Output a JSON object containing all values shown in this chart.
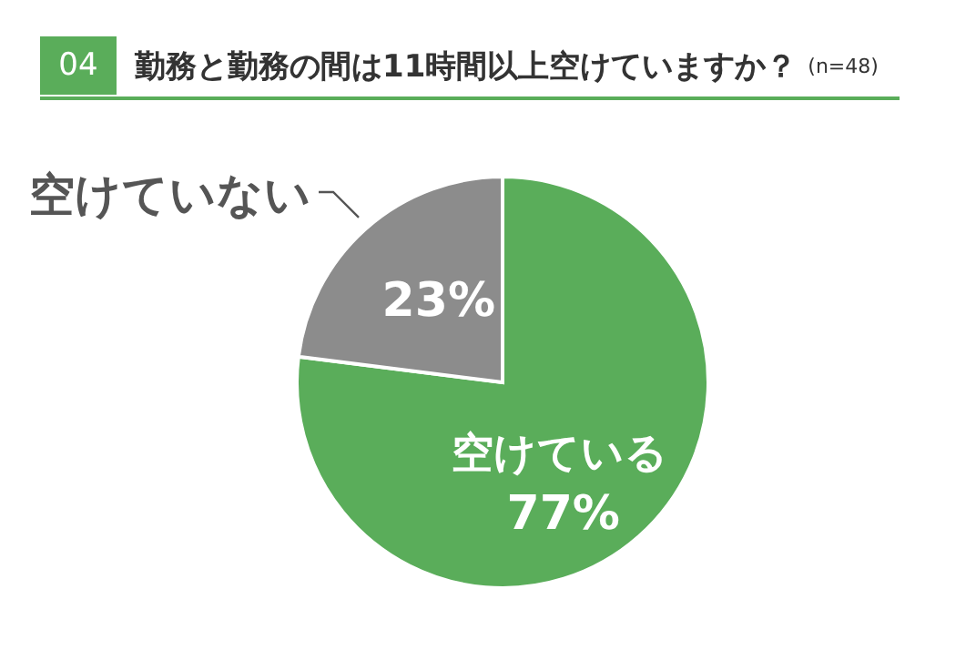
{
  "chart_data": {
    "type": "pie",
    "title": "勤務と勤務の間は11時間以上空けていますか？",
    "subtitle": "(n=48)",
    "annotations": [
      "04"
    ],
    "categories": [
      "空けている",
      "空けていない"
    ],
    "values": [
      77,
      23
    ],
    "colors": [
      "#5aad5a",
      "#8c8c8c"
    ],
    "value_labels": [
      "77%",
      "23%"
    ]
  }
}
